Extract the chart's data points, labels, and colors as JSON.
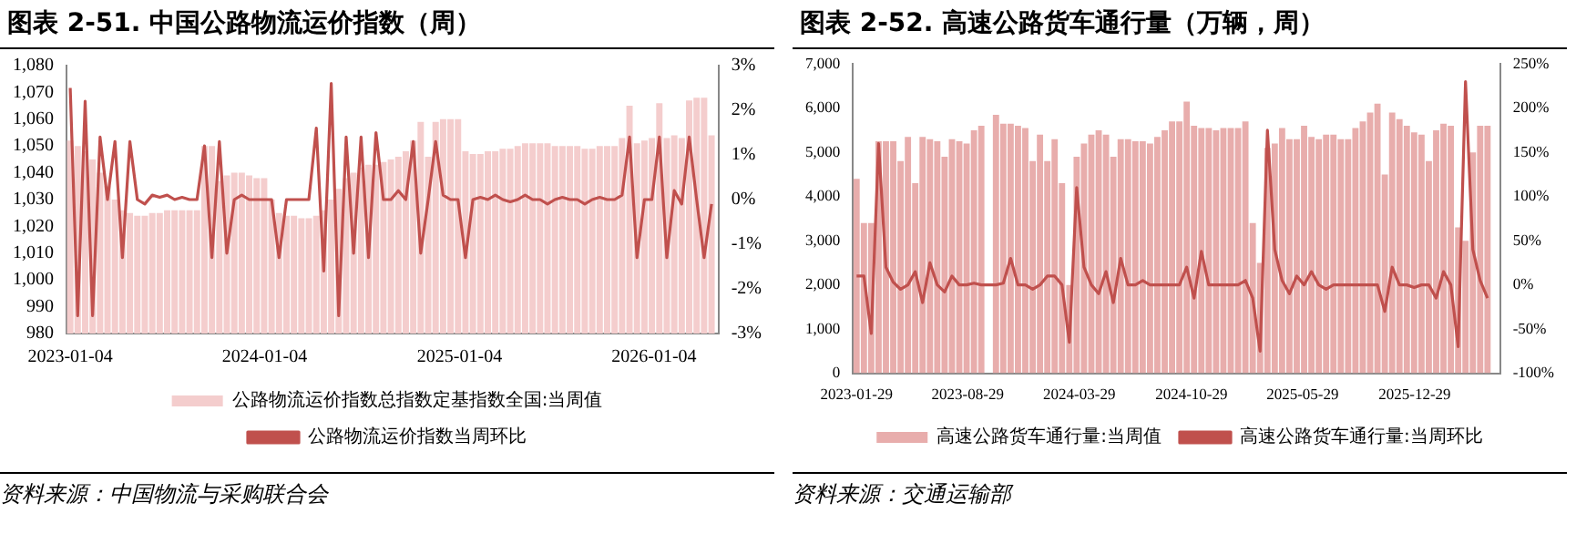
{
  "chart_data": [
    {
      "type": "bar",
      "title": "图表 2-51. 中国公路物流运价指数（周）",
      "annotations": [
        "资料来源：中国物流与采购联合会"
      ],
      "legend": "bottom",
      "marker": "none",
      "x": [
        "2023-01-04",
        "2023-01-18",
        "2023-02-01",
        "2023-02-15",
        "2023-03-01",
        "2023-03-15",
        "2023-03-29",
        "2023-04-12",
        "2023-04-26",
        "2023-05-10",
        "2023-05-24",
        "2023-06-07",
        "2023-06-21",
        "2023-07-05",
        "2023-07-19",
        "2023-08-02",
        "2023-08-16",
        "2023-08-30",
        "2023-09-13",
        "2023-09-27",
        "2023-10-11",
        "2023-10-25",
        "2023-11-08",
        "2023-11-22",
        "2023-12-06",
        "2023-12-20",
        "2024-01-03",
        "2024-01-17",
        "2024-01-31",
        "2024-02-14",
        "2024-02-28",
        "2024-03-13",
        "2024-03-27",
        "2024-04-10",
        "2024-04-24",
        "2024-05-08",
        "2024-05-22",
        "2024-06-05",
        "2024-06-19",
        "2024-07-03",
        "2024-07-17",
        "2024-07-31",
        "2024-08-14",
        "2024-08-28",
        "2024-09-11",
        "2024-09-25",
        "2024-10-09",
        "2024-10-23",
        "2024-11-06",
        "2024-11-20",
        "2024-12-04",
        "2024-12-18",
        "2025-01-01",
        "2025-01-15",
        "2025-01-29",
        "2025-02-12",
        "2025-02-26",
        "2025-03-12",
        "2025-03-26",
        "2025-04-09",
        "2025-04-23",
        "2025-05-07",
        "2025-05-21",
        "2025-06-04",
        "2025-06-18",
        "2025-07-02",
        "2025-07-16",
        "2025-07-30",
        "2025-08-13",
        "2025-08-27",
        "2025-09-10",
        "2025-09-24",
        "2025-10-08",
        "2025-10-22",
        "2025-11-05",
        "2025-11-19",
        "2025-12-03",
        "2025-12-17",
        "2025-12-31",
        "2026-01-14",
        "2026-01-28",
        "2026-02-11",
        "2026-02-25",
        "2026-03-11",
        "2026-03-25",
        "2026-04-08",
        "2026-04-22"
      ],
      "xlim": [
        "2022-12-28",
        "2026-05-05"
      ],
      "xticks": [
        "2023-01-04",
        "2024-01-04",
        "2025-01-04",
        "2026-01-04"
      ],
      "ylim": [
        980,
        1080
      ],
      "yticks": [
        {
          "value": 980,
          "label": "980"
        },
        {
          "value": 990,
          "label": "990"
        },
        {
          "value": 1000,
          "label": "1,000"
        },
        {
          "value": 1010,
          "label": "1,010"
        },
        {
          "value": 1020,
          "label": "1,020"
        },
        {
          "value": 1030,
          "label": "1,030"
        },
        {
          "value": 1040,
          "label": "1,040"
        },
        {
          "value": 1050,
          "label": "1,050"
        },
        {
          "value": 1060,
          "label": "1,060"
        },
        {
          "value": 1070,
          "label": "1,070"
        },
        {
          "value": 1080,
          "label": "1,080"
        }
      ],
      "y2lim": [
        -3,
        3
      ],
      "y2ticks": [
        {
          "value": -3,
          "label": "-3%"
        },
        {
          "value": -2,
          "label": "-2%"
        },
        {
          "value": -1,
          "label": "-1%"
        },
        {
          "value": 0,
          "label": "0%"
        },
        {
          "value": 1,
          "label": "1%"
        },
        {
          "value": 2,
          "label": "2%"
        },
        {
          "value": 3,
          "label": "3%"
        }
      ],
      "series": [
        {
          "name": "公路物流运价指数总指数定基指数全国:当周值",
          "color": "#f4cdcd",
          "values": [
            1052,
            1050,
            1048,
            1045,
            1040,
            1035,
            1030,
            1026,
            1025,
            1024,
            1024,
            1025,
            1025,
            1026,
            1026,
            1026,
            1026,
            1026,
            1050,
            1050,
            1037,
            1039,
            1040,
            1040,
            1039,
            1038,
            1038,
            1030,
            1025,
            1024,
            1024,
            1023,
            1023,
            1024,
            1026,
            1030,
            1034,
            1038,
            1040,
            1042,
            1043,
            1043,
            1044,
            1045,
            1046,
            1048,
            1052,
            1059,
            1046,
            1059,
            1060,
            1060,
            1060,
            1048,
            1047,
            1047,
            1048,
            1048,
            1049,
            1049,
            1050,
            1051,
            1051,
            1051,
            1051,
            1050,
            1050,
            1050,
            1050,
            1049,
            1049,
            1050,
            1050,
            1050,
            1053,
            1065,
            1051,
            1052,
            1053,
            1066,
            1053,
            1054,
            1053,
            1067,
            1068,
            1068,
            1054
          ]
        },
        {
          "name": "公路物流运价指数当周环比",
          "type": "line",
          "axis": "y2",
          "color": "#c0504d",
          "values": [
            2.5,
            -2.6,
            2.2,
            -2.6,
            1.4,
            0,
            1.3,
            -1.3,
            1.3,
            0,
            -0.1,
            0.1,
            0.05,
            0.1,
            0,
            0.05,
            0,
            0,
            1.2,
            -1.3,
            1.3,
            -1.2,
            0,
            0.1,
            0,
            0,
            0,
            0,
            -1.3,
            0,
            0,
            0,
            0,
            1.6,
            -1.6,
            2.6,
            -2.6,
            1.4,
            -1.2,
            1.4,
            -1.3,
            1.5,
            0,
            0,
            0.2,
            0,
            1.3,
            -1.2,
            0,
            1.3,
            0.1,
            0,
            0,
            -1.3,
            0,
            0.05,
            0,
            0.1,
            0,
            -0.05,
            0,
            0.1,
            0,
            0,
            -0.1,
            0,
            0.05,
            0,
            0,
            -0.1,
            0,
            0.05,
            0,
            0,
            0.1,
            1.4,
            -1.3,
            0,
            0,
            1.4,
            -1.3,
            0.2,
            -0.1,
            1.4,
            0,
            -1.3,
            -0.1
          ]
        }
      ]
    },
    {
      "type": "bar",
      "title": "图表 2-52. 高速公路货车通行量（万辆，周）",
      "annotations": [
        "资料来源：交通运输部"
      ],
      "legend": "bottom",
      "marker": "none",
      "x": [
        "2023-01-29",
        "2023-02-12",
        "2023-02-26",
        "2023-03-12",
        "2023-03-26",
        "2023-04-09",
        "2023-04-23",
        "2023-05-07",
        "2023-05-21",
        "2023-06-04",
        "2023-06-18",
        "2023-07-02",
        "2023-07-16",
        "2023-07-30",
        "2023-08-13",
        "2023-08-27",
        "2023-09-10",
        "2023-09-24",
        "2023-10-08",
        "2023-10-22",
        "2023-11-05",
        "2023-11-19",
        "2023-12-03",
        "2023-12-17",
        "2023-12-31",
        "2024-01-14",
        "2024-01-28",
        "2024-02-11",
        "2024-02-25",
        "2024-03-10",
        "2024-03-24",
        "2024-04-07",
        "2024-04-21",
        "2024-05-05",
        "2024-05-19",
        "2024-06-02",
        "2024-06-16",
        "2024-06-30",
        "2024-07-14",
        "2024-07-28",
        "2024-08-11",
        "2024-08-25",
        "2024-09-08",
        "2024-09-22",
        "2024-10-06",
        "2024-10-20",
        "2024-11-03",
        "2024-11-17",
        "2024-12-01",
        "2024-12-15",
        "2024-12-29",
        "2025-01-12",
        "2025-01-26",
        "2025-02-09",
        "2025-02-23",
        "2025-03-09",
        "2025-03-23",
        "2025-04-06",
        "2025-04-20",
        "2025-05-04",
        "2025-05-18",
        "2025-06-01",
        "2025-06-15",
        "2025-06-29",
        "2025-07-13",
        "2025-07-27",
        "2025-08-10",
        "2025-08-24",
        "2025-09-07",
        "2025-09-21",
        "2025-10-05",
        "2025-10-19",
        "2025-11-02",
        "2025-11-16",
        "2025-11-30",
        "2025-12-14",
        "2025-12-28",
        "2026-01-11",
        "2026-01-25",
        "2026-02-08",
        "2026-02-22",
        "2026-03-08",
        "2026-03-22",
        "2026-04-05",
        "2026-04-19",
        "2026-05-03",
        "2026-05-17"
      ],
      "xlim": [
        "2023-01-22",
        "2026-06-10"
      ],
      "xticks": [
        "2023-01-29",
        "2023-08-29",
        "2024-03-29",
        "2024-10-29",
        "2025-05-29",
        "2025-12-29"
      ],
      "ylim": [
        0,
        7000
      ],
      "yticks": [
        0,
        {
          "value": 1000,
          "label": "1,000"
        },
        {
          "value": 2000,
          "label": "2,000"
        },
        {
          "value": 3000,
          "label": "3,000"
        },
        {
          "value": 4000,
          "label": "4,000"
        },
        {
          "value": 5000,
          "label": "5,000"
        },
        {
          "value": 6000,
          "label": "6,000"
        },
        {
          "value": 7000,
          "label": "7,000"
        }
      ],
      "y2lim": [
        -100,
        250
      ],
      "y2ticks": [
        {
          "value": -100,
          "label": "-100%"
        },
        {
          "value": -50,
          "label": "-50%"
        },
        {
          "value": 0,
          "label": "0%"
        },
        {
          "value": 50,
          "label": "50%"
        },
        {
          "value": 100,
          "label": "100%"
        },
        {
          "value": 150,
          "label": "150%"
        },
        {
          "value": 200,
          "label": "200%"
        },
        {
          "value": 250,
          "label": "250%"
        }
      ],
      "series": [
        {
          "name": "高速公路货车通行量:当周值",
          "color": "#e8adac",
          "values": [
            4400,
            3400,
            3400,
            5250,
            5250,
            5250,
            4800,
            5350,
            4300,
            5350,
            5300,
            5250,
            4900,
            5300,
            5250,
            5200,
            5500,
            5600,
            null,
            5850,
            5650,
            5650,
            5600,
            5550,
            4800,
            5400,
            4800,
            5300,
            4300,
            2000,
            4900,
            5200,
            5400,
            5500,
            5400,
            4900,
            5300,
            5300,
            5250,
            5250,
            5200,
            5350,
            5500,
            5700,
            5700,
            6150,
            5600,
            5550,
            5550,
            5500,
            5550,
            5550,
            5550,
            5700,
            3400,
            2500,
            5100,
            5200,
            5550,
            5300,
            5300,
            5600,
            5350,
            5300,
            5400,
            5400,
            5300,
            5300,
            5550,
            5700,
            5900,
            6100,
            4500,
            5900,
            5750,
            5600,
            5450,
            5400,
            4800,
            5500,
            5650,
            5600,
            3300,
            3000,
            5000,
            5600,
            5600
          ]
        },
        {
          "name": "高速公路货车通行量:当周环比",
          "type": "line",
          "axis": "y2",
          "color": "#c0504d",
          "values": [
            10,
            10,
            -55,
            160,
            20,
            3,
            -5,
            0,
            15,
            -20,
            25,
            0,
            -8,
            10,
            0,
            0,
            2,
            0,
            0,
            0,
            2,
            30,
            0,
            0,
            -5,
            0,
            10,
            10,
            0,
            -65,
            110,
            20,
            0,
            -10,
            15,
            -20,
            30,
            0,
            0,
            5,
            0,
            0,
            0,
            0,
            0,
            20,
            -15,
            38,
            0,
            0,
            0,
            0,
            0,
            5,
            -15,
            -75,
            175,
            40,
            5,
            -10,
            10,
            0,
            15,
            0,
            -5,
            0,
            0,
            0,
            0,
            0,
            0,
            0,
            -30,
            20,
            0,
            0,
            -3,
            0,
            0,
            -15,
            15,
            0,
            -70,
            230,
            40,
            5,
            -15
          ]
        }
      ]
    }
  ]
}
